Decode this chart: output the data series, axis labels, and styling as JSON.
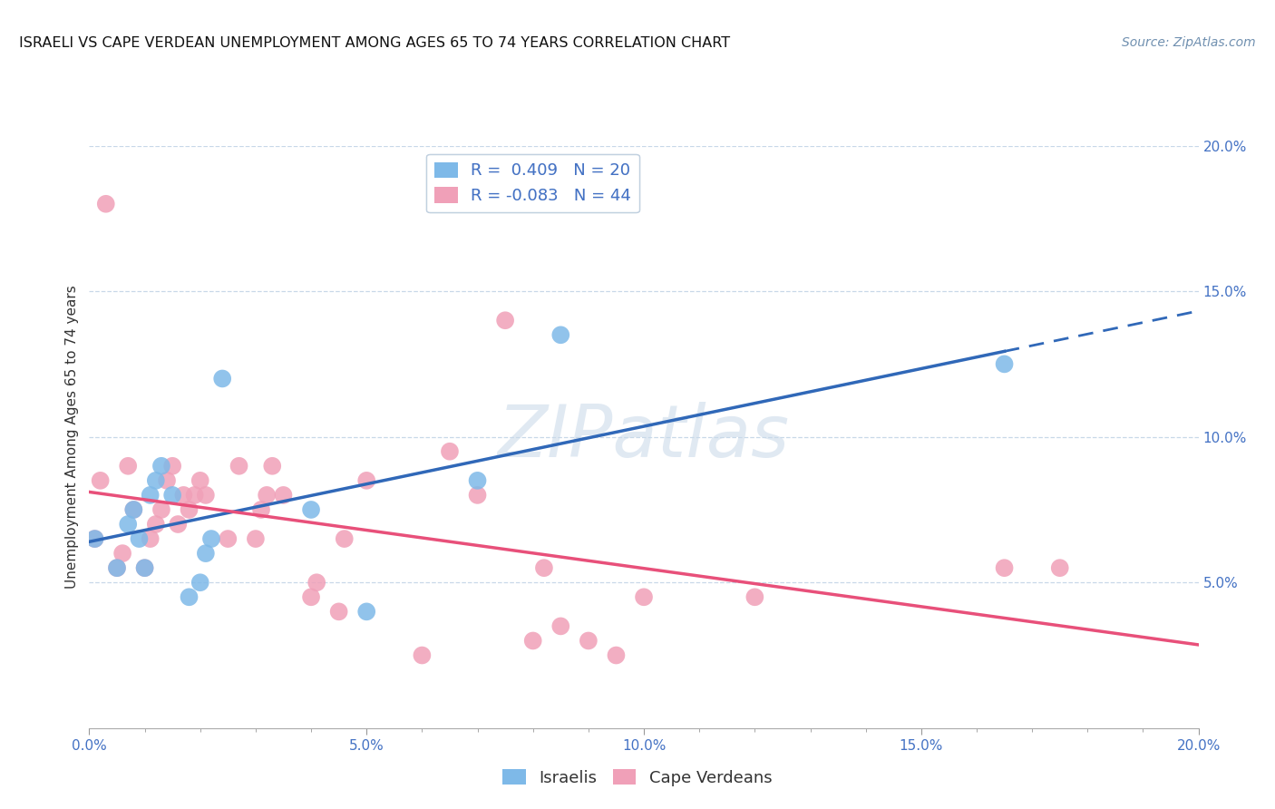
{
  "title": "ISRAELI VS CAPE VERDEAN UNEMPLOYMENT AMONG AGES 65 TO 74 YEARS CORRELATION CHART",
  "source": "Source: ZipAtlas.com",
  "ylabel": "Unemployment Among Ages 65 to 74 years",
  "xlim": [
    0.0,
    0.2
  ],
  "ylim": [
    0.0,
    0.2
  ],
  "xtick_labels": [
    "0.0%",
    "",
    "",
    "",
    "",
    "5.0%",
    "",
    "",
    "",
    "",
    "10.0%",
    "",
    "",
    "",
    "",
    "15.0%",
    "",
    "",
    "",
    "",
    "20.0%"
  ],
  "xtick_vals": [
    0.0,
    0.01,
    0.02,
    0.03,
    0.04,
    0.05,
    0.06,
    0.07,
    0.08,
    0.09,
    0.1,
    0.11,
    0.12,
    0.13,
    0.14,
    0.15,
    0.16,
    0.17,
    0.18,
    0.19,
    0.2
  ],
  "right_ytick_labels": [
    "5.0%",
    "10.0%",
    "15.0%",
    "20.0%"
  ],
  "right_ytick_vals": [
    0.05,
    0.1,
    0.15,
    0.2
  ],
  "grid_ytick_vals": [
    0.05,
    0.1,
    0.15,
    0.2
  ],
  "israeli_R": 0.409,
  "israeli_N": 20,
  "capeverdean_R": -0.083,
  "capeverdean_N": 44,
  "israeli_color": "#7EB9E8",
  "capeverdean_color": "#F0A0B8",
  "israeli_line_color": "#3068B8",
  "capeverdean_line_color": "#E8507A",
  "watermark_text": "ZIPatlas",
  "background_color": "#FFFFFF",
  "grid_color": "#C8D8E8",
  "israeli_x": [
    0.001,
    0.005,
    0.007,
    0.008,
    0.009,
    0.01,
    0.011,
    0.012,
    0.013,
    0.015,
    0.018,
    0.02,
    0.021,
    0.022,
    0.024,
    0.04,
    0.05,
    0.07,
    0.085,
    0.165
  ],
  "israeli_y": [
    0.065,
    0.055,
    0.07,
    0.075,
    0.065,
    0.055,
    0.08,
    0.085,
    0.09,
    0.08,
    0.045,
    0.05,
    0.06,
    0.065,
    0.12,
    0.075,
    0.04,
    0.085,
    0.135,
    0.125
  ],
  "capeverdean_x": [
    0.001,
    0.002,
    0.003,
    0.005,
    0.006,
    0.007,
    0.008,
    0.01,
    0.011,
    0.012,
    0.013,
    0.014,
    0.015,
    0.016,
    0.017,
    0.018,
    0.019,
    0.02,
    0.021,
    0.025,
    0.027,
    0.03,
    0.031,
    0.032,
    0.033,
    0.035,
    0.04,
    0.041,
    0.045,
    0.046,
    0.05,
    0.06,
    0.065,
    0.07,
    0.075,
    0.08,
    0.082,
    0.085,
    0.09,
    0.095,
    0.1,
    0.12,
    0.165,
    0.175
  ],
  "capeverdean_y": [
    0.065,
    0.085,
    0.18,
    0.055,
    0.06,
    0.09,
    0.075,
    0.055,
    0.065,
    0.07,
    0.075,
    0.085,
    0.09,
    0.07,
    0.08,
    0.075,
    0.08,
    0.085,
    0.08,
    0.065,
    0.09,
    0.065,
    0.075,
    0.08,
    0.09,
    0.08,
    0.045,
    0.05,
    0.04,
    0.065,
    0.085,
    0.025,
    0.095,
    0.08,
    0.14,
    0.03,
    0.055,
    0.035,
    0.03,
    0.025,
    0.045,
    0.045,
    0.055,
    0.055
  ]
}
